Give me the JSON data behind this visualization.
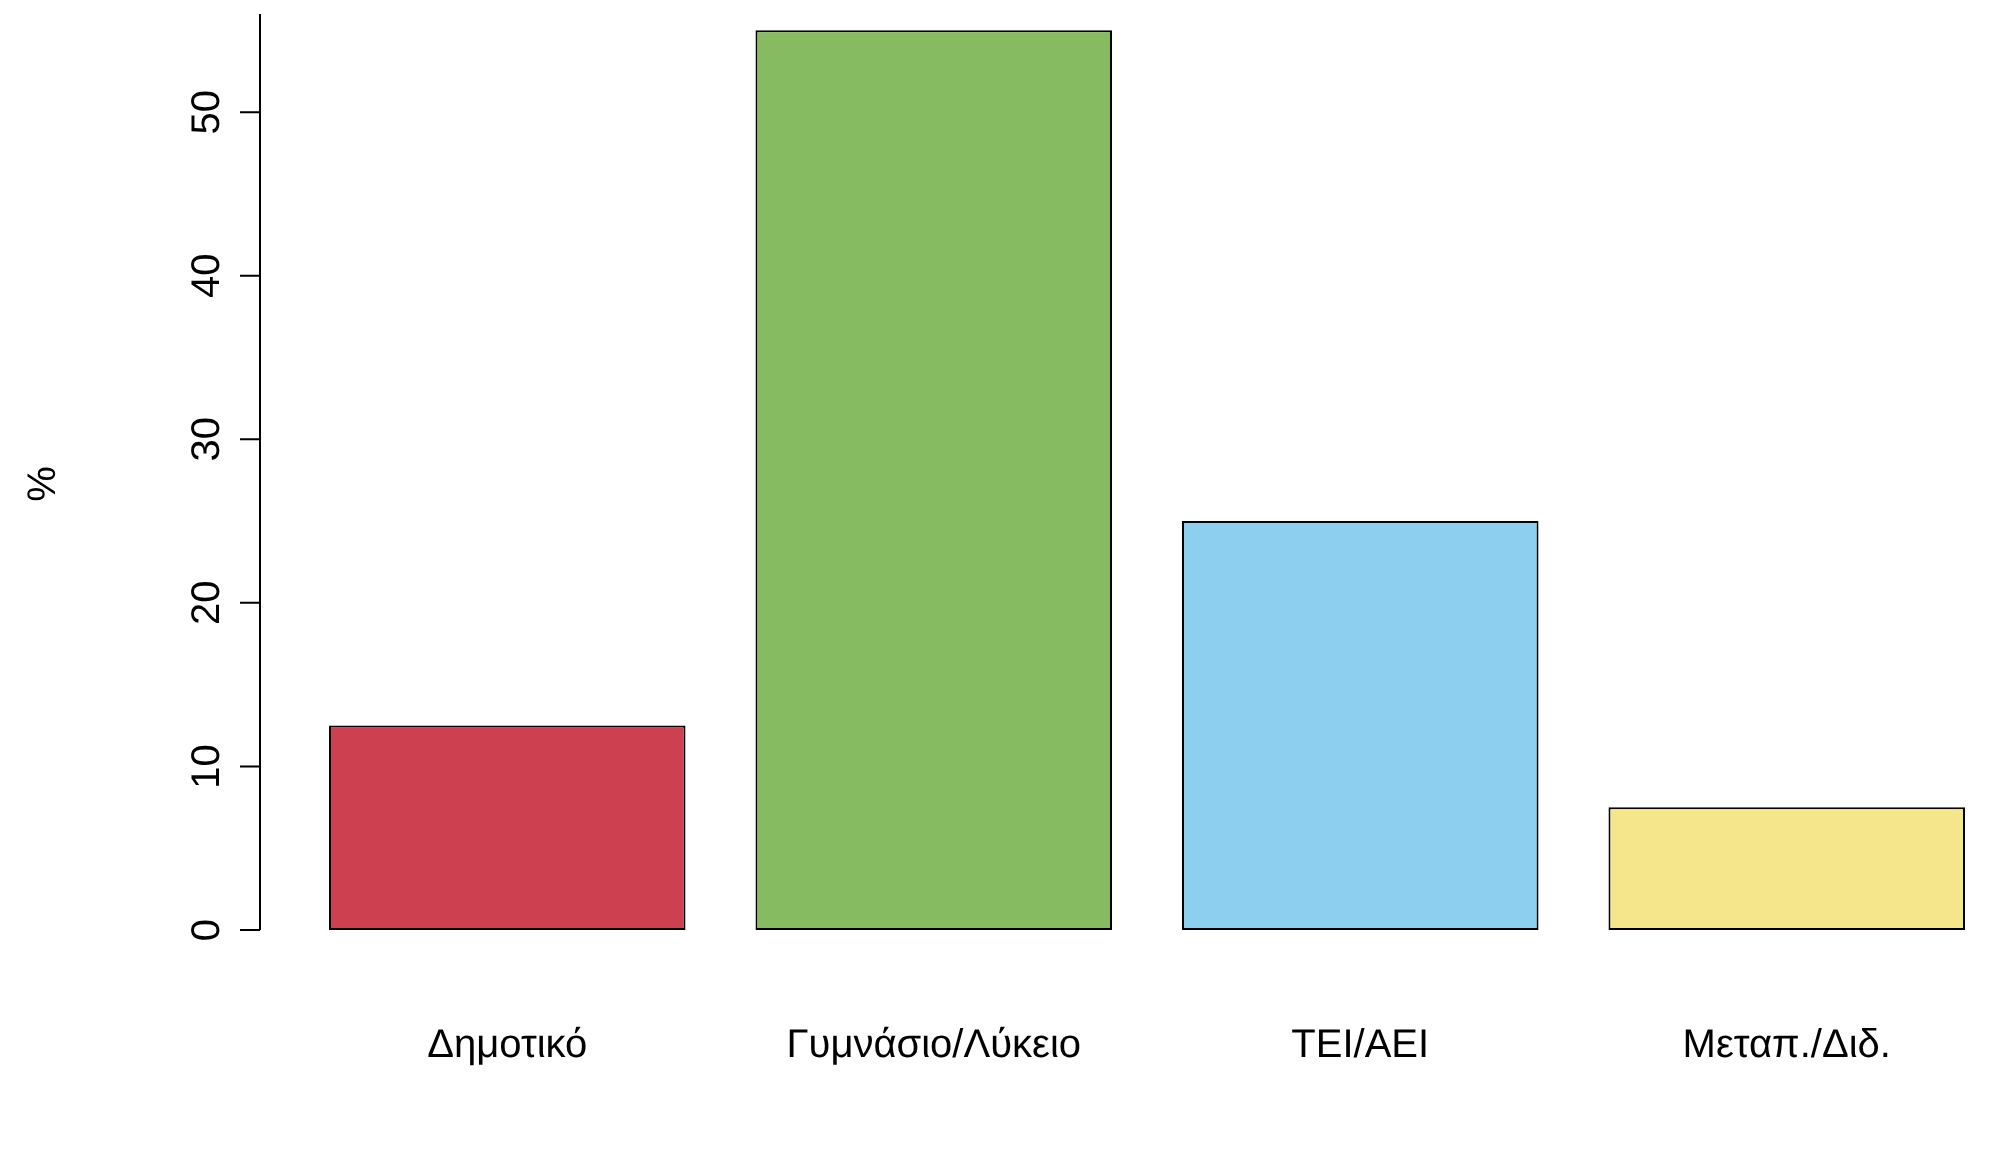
{
  "chart_data": {
    "type": "bar",
    "ylabel": "%",
    "categories": [
      "Δημοτικό",
      "Γυμνάσιο/Λύκειο",
      "ΤΕΙ/ΑΕΙ",
      "Μεταπ./Διδ."
    ],
    "values": [
      12.5,
      55,
      25,
      7.5
    ],
    "colors": [
      "#cd4050",
      "#86bb61",
      "#8ccfee",
      "#f5e68c"
    ],
    "ylim": [
      0,
      56
    ],
    "yticks": [
      0,
      10,
      20,
      30,
      40,
      50
    ]
  }
}
